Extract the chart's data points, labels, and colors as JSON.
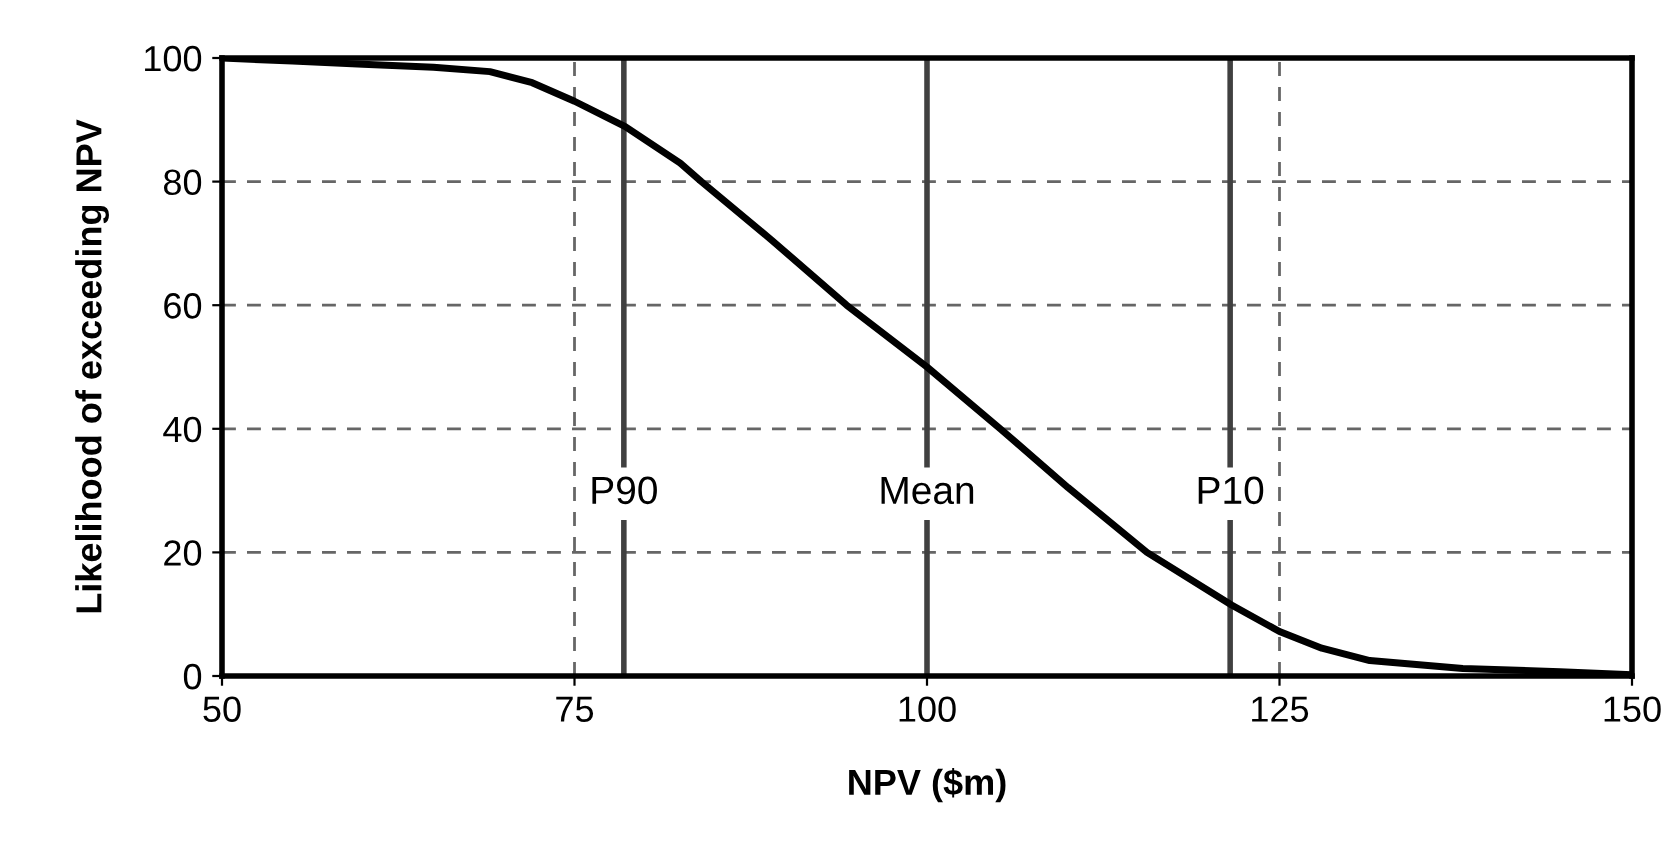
{
  "chart_data": {
    "type": "line",
    "xlabel": "NPV ($m)",
    "ylabel": "Likelihood of exceeding NPV",
    "x": [
      50,
      55,
      60,
      65,
      69,
      72,
      75,
      78.6,
      82.5,
      84,
      89,
      94.3,
      100,
      105.2,
      110,
      115.6,
      121.6,
      125,
      128,
      131.4,
      138,
      144.9,
      150
    ],
    "series": [
      {
        "color": "#000000",
        "values": [
          100,
          99.5,
          99,
          98.5,
          97.8,
          96,
          93,
          88.9,
          83,
          80,
          70.5,
          60,
          50,
          40,
          30.5,
          20,
          11.5,
          7.2,
          4.5,
          2.5,
          1.2,
          0.7,
          0.2
        ]
      }
    ],
    "xlim": [
      50,
      150
    ],
    "xticks": [
      50,
      75,
      100,
      125,
      150
    ],
    "ylim": [
      0,
      100
    ],
    "yticks": [
      0,
      20,
      40,
      60,
      80,
      100
    ],
    "grid": true,
    "marker": "none",
    "line_style": "solid",
    "ref_lines": [
      {
        "axis": "x",
        "value": 78.5,
        "label": "P90",
        "color": "#404040"
      },
      {
        "axis": "x",
        "value": 100,
        "label": "Mean",
        "color": "#404040"
      },
      {
        "axis": "x",
        "value": 121.5,
        "label": "P10",
        "color": "#404040"
      }
    ]
  }
}
